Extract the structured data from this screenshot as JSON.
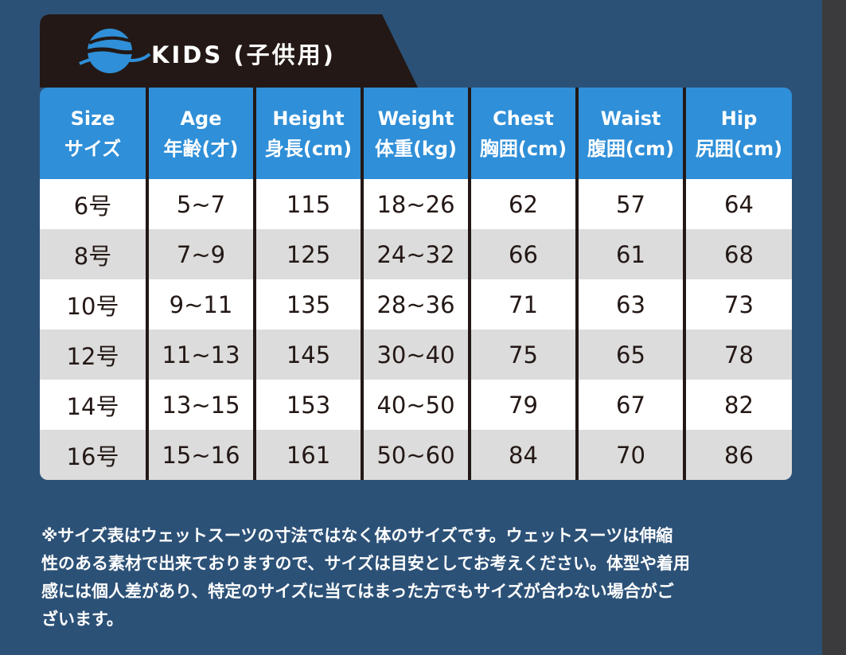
{
  "header": {
    "title": "KIDS (子供用)"
  },
  "table": {
    "columns": [
      [
        "Size",
        "サイズ"
      ],
      [
        "Age",
        "年齢(才)"
      ],
      [
        "Height",
        "身長(cm)"
      ],
      [
        "Weight",
        "体重(kg)"
      ],
      [
        "Chest",
        "胸囲(cm)"
      ],
      [
        "Waist",
        "腹囲(cm)"
      ],
      [
        "Hip",
        "尻囲(cm)"
      ]
    ],
    "rows": [
      [
        "6号",
        "5~7",
        "115",
        "18~26",
        "62",
        "57",
        "64"
      ],
      [
        "8号",
        "7~9",
        "125",
        "24~32",
        "66",
        "61",
        "68"
      ],
      [
        "10号",
        "9~11",
        "135",
        "28~36",
        "71",
        "63",
        "73"
      ],
      [
        "12号",
        "11~13",
        "145",
        "30~40",
        "75",
        "65",
        "78"
      ],
      [
        "14号",
        "13~15",
        "153",
        "40~50",
        "79",
        "67",
        "82"
      ],
      [
        "16号",
        "15~16",
        "161",
        "50~60",
        "84",
        "70",
        "86"
      ]
    ]
  },
  "note": {
    "lines": [
      "※サイズ表はウェットスーツの寸法ではなく体のサイズです。ウェットスーツは伸縮",
      "性のある素材で出来ておりますので、サイズは目安としてお考えください。体型や着用",
      "感には個人差があり、特定のサイズに当てはまった方でもサイズが合わない場合がご",
      "ざいます。"
    ]
  }
}
